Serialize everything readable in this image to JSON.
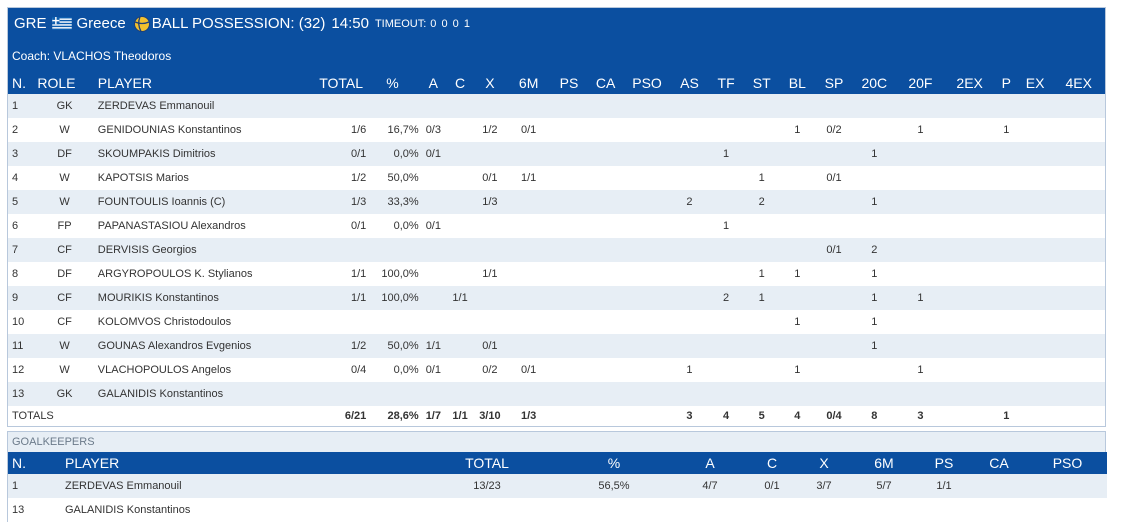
{
  "team": {
    "code": "GRE",
    "name": "Greece",
    "ball_possession": "BALL POSSESSION: (32)",
    "clock": "14:50",
    "timeout_label": "TIMEOUT:",
    "timeout_values": "0 0 0 1",
    "coach": "Coach: VLACHOS Theodoros"
  },
  "stats_headers": [
    "N.",
    "ROLE",
    "PLAYER",
    "TOTAL",
    "%",
    "A",
    "C",
    "X",
    "6M",
    "PS",
    "CA",
    "PSO",
    "AS",
    "TF",
    "ST",
    "BL",
    "SP",
    "20C",
    "20F",
    "2EX",
    "P",
    "EX",
    "4EX"
  ],
  "players": [
    [
      "1",
      "GK",
      "ZERDEVAS Emmanouil",
      "",
      "",
      "",
      "",
      "",
      "",
      "",
      "",
      "",
      "",
      "",
      "",
      "",
      "",
      "",
      "",
      "",
      "",
      "",
      ""
    ],
    [
      "2",
      "W",
      "GENIDOUNIAS Konstantinos",
      "1/6",
      "16,7%",
      "0/3",
      "",
      "1/2",
      "0/1",
      "",
      "",
      "",
      "",
      "",
      "",
      "1",
      "0/2",
      "",
      "1",
      "",
      "1",
      "",
      ""
    ],
    [
      "3",
      "DF",
      "SKOUMPAKIS Dimitrios",
      "0/1",
      "0,0%",
      "0/1",
      "",
      "",
      "",
      "",
      "",
      "",
      "",
      "1",
      "",
      "",
      "",
      "1",
      "",
      "",
      "",
      "",
      ""
    ],
    [
      "4",
      "W",
      "KAPOTSIS Marios",
      "1/2",
      "50,0%",
      "",
      "",
      "0/1",
      "1/1",
      "",
      "",
      "",
      "",
      "",
      "1",
      "",
      "0/1",
      "",
      "",
      "",
      "",
      "",
      ""
    ],
    [
      "5",
      "W",
      "FOUNTOULIS Ioannis (C)",
      "1/3",
      "33,3%",
      "",
      "",
      "1/3",
      "",
      "",
      "",
      "",
      "2",
      "",
      "2",
      "",
      "",
      "1",
      "",
      "",
      "",
      "",
      ""
    ],
    [
      "6",
      "FP",
      "PAPANASTASIOU Alexandros",
      "0/1",
      "0,0%",
      "0/1",
      "",
      "",
      "",
      "",
      "",
      "",
      "",
      "1",
      "",
      "",
      "",
      "",
      "",
      "",
      "",
      "",
      ""
    ],
    [
      "7",
      "CF",
      "DERVISIS Georgios",
      "",
      "",
      "",
      "",
      "",
      "",
      "",
      "",
      "",
      "",
      "",
      "",
      "",
      "0/1",
      "2",
      "",
      "",
      "",
      "",
      ""
    ],
    [
      "8",
      "DF",
      "ARGYROPOULOS K. Stylianos",
      "1/1",
      "100,0%",
      "",
      "",
      "1/1",
      "",
      "",
      "",
      "",
      "",
      "",
      "1",
      "1",
      "",
      "1",
      "",
      "",
      "",
      "",
      ""
    ],
    [
      "9",
      "CF",
      "MOURIKIS Konstantinos",
      "1/1",
      "100,0%",
      "",
      "1/1",
      "",
      "",
      "",
      "",
      "",
      "",
      "2",
      "1",
      "",
      "",
      "1",
      "1",
      "",
      "",
      "",
      ""
    ],
    [
      "10",
      "CF",
      "KOLOMVOS Christodoulos",
      "",
      "",
      "",
      "",
      "",
      "",
      "",
      "",
      "",
      "",
      "",
      "",
      "1",
      "",
      "1",
      "",
      "",
      "",
      "",
      ""
    ],
    [
      "11",
      "W",
      "GOUNAS Alexandros Evgenios",
      "1/2",
      "50,0%",
      "1/1",
      "",
      "0/1",
      "",
      "",
      "",
      "",
      "",
      "",
      "",
      "",
      "",
      "1",
      "",
      "",
      "",
      "",
      ""
    ],
    [
      "12",
      "W",
      "VLACHOPOULOS Angelos",
      "0/4",
      "0,0%",
      "0/1",
      "",
      "0/2",
      "0/1",
      "",
      "",
      "",
      "1",
      "",
      "",
      "1",
      "",
      "",
      "1",
      "",
      "",
      "",
      ""
    ],
    [
      "13",
      "GK",
      "GALANIDIS Konstantinos",
      "",
      "",
      "",
      "",
      "",
      "",
      "",
      "",
      "",
      "",
      "",
      "",
      "",
      "",
      "",
      "",
      "",
      "",
      "",
      ""
    ]
  ],
  "totals": [
    "TOTALS",
    "",
    "",
    "6/21",
    "28,6%",
    "1/7",
    "1/1",
    "3/10",
    "1/3",
    "",
    "",
    "",
    "3",
    "4",
    "5",
    "4",
    "0/4",
    "8",
    "3",
    "",
    "1",
    "",
    ""
  ],
  "goalkeepers": {
    "title": "GOALKEEPERS",
    "headers": [
      "N.",
      "PLAYER",
      "TOTAL",
      "%",
      "A",
      "C",
      "X",
      "6M",
      "PS",
      "CA",
      "PSO"
    ],
    "rows": [
      [
        "1",
        "ZERDEVAS Emmanouil",
        "13/23",
        "56,5%",
        "4/7",
        "0/1",
        "3/7",
        "5/7",
        "1/1",
        "",
        ""
      ],
      [
        "13",
        "GALANIDIS Konstantinos",
        "",
        "",
        "",
        "",
        "",
        "",
        "",
        "",
        ""
      ]
    ]
  },
  "colors": {
    "header_bg": "#0b4fa0",
    "row_alt_bg": "#e7eef5",
    "text": "#333333"
  },
  "icons": {
    "flag": "greece-flag-icon",
    "ball": "water-polo-ball-icon"
  }
}
